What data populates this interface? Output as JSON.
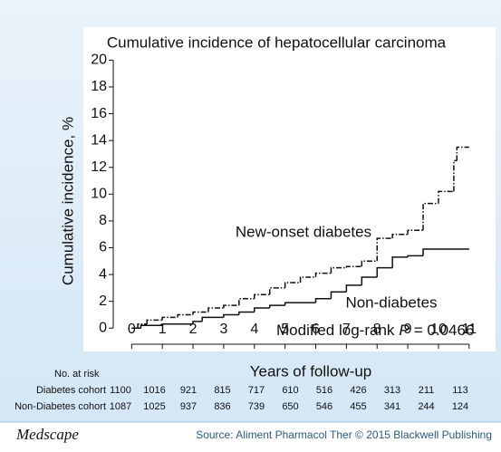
{
  "chart_data": {
    "type": "step",
    "title": "Cumulative incidence of hepatocellular carcinoma",
    "x_label": "Years of follow-up",
    "y_label": "Cumulative incidence, %",
    "xlim": [
      -0.6,
      11.3
    ],
    "ylim": [
      -1.2,
      20.5
    ],
    "xticks": [
      0,
      1,
      2,
      3,
      4,
      5,
      6,
      7,
      8,
      9,
      10,
      11
    ],
    "yticks": [
      0,
      2,
      4,
      6,
      8,
      10,
      12,
      14,
      16,
      18,
      20
    ],
    "series": [
      {
        "name": "New-onset diabetes",
        "color": "#111111",
        "dash": "6 2 1.5 2",
        "x": [
          0,
          0.2,
          0.5,
          1,
          1.5,
          2,
          2.5,
          3,
          3.5,
          4,
          4.5,
          5,
          5.5,
          6,
          6.5,
          7,
          7.5,
          8,
          8.5,
          9,
          9.5,
          10,
          10.5,
          10.6,
          11
        ],
        "values": [
          0,
          0.3,
          0.6,
          0.8,
          1.0,
          1.2,
          1.5,
          1.7,
          2.2,
          2.5,
          3.0,
          3.4,
          3.8,
          4.1,
          4.5,
          4.6,
          5.0,
          6.7,
          7.0,
          7.3,
          9.3,
          10.2,
          12.5,
          13.5,
          13.5
        ]
      },
      {
        "name": "Non-diabetes",
        "color": "#111111",
        "dash": "none",
        "x": [
          0,
          0.3,
          1,
          2,
          2.3,
          3,
          3.5,
          4,
          4.5,
          5,
          6,
          6.5,
          7,
          7.5,
          8,
          8.5,
          9,
          9.5,
          11
        ],
        "values": [
          0,
          0.2,
          0.3,
          0.5,
          0.8,
          1.0,
          1.2,
          1.5,
          1.7,
          1.9,
          2.2,
          2.7,
          3.2,
          3.8,
          4.5,
          5.3,
          5.4,
          5.9,
          5.9
        ]
      }
    ],
    "p_value": {
      "prefix": "Modified log-rank",
      "symbol": "P",
      "suffix": "= 0.0466"
    },
    "risk_table": {
      "title": "No. at risk",
      "rows": [
        {
          "label": "Diabetes cohort",
          "counts": [
            1100,
            1016,
            921,
            815,
            717,
            610,
            516,
            426,
            313,
            211,
            113
          ]
        },
        {
          "label": "Non-Diabetes cohort",
          "counts": [
            1087,
            1025,
            937,
            836,
            739,
            650,
            546,
            455,
            341,
            244,
            124
          ]
        }
      ]
    }
  },
  "footer": {
    "brand": "Medscape",
    "source": "Source: Aliment Pharmacol Ther © 2015 Blackwell Publishing"
  }
}
